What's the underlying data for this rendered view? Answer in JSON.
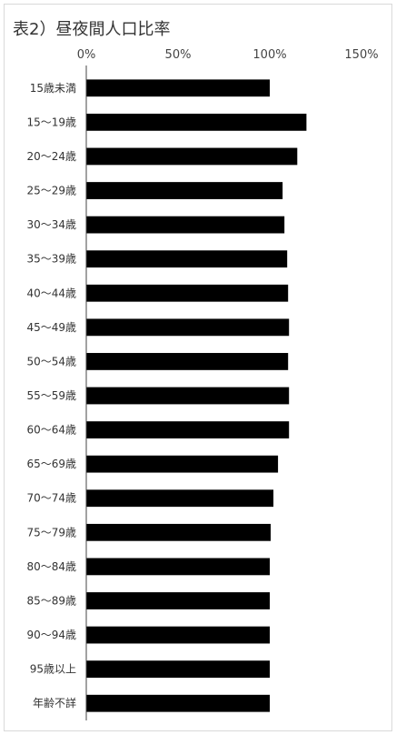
{
  "chart_data": {
    "type": "bar",
    "orientation": "horizontal",
    "title": "表2）昼夜間人口比率",
    "xlabel": "",
    "ylabel": "",
    "xlim": [
      0,
      150
    ],
    "x_ticks": [
      "0%",
      "50%",
      "100%",
      "150%"
    ],
    "x_tick_values": [
      0,
      50,
      100,
      150
    ],
    "grid": false,
    "legend": "none",
    "bar_color": "#000000",
    "categories": [
      "15歳未満",
      "15～19歳",
      "20～24歳",
      "25～29歳",
      "30～34歳",
      "35～39歳",
      "40～44歳",
      "45～49歳",
      "50～54歳",
      "55～59歳",
      "60～64歳",
      "65～69歳",
      "70～74歳",
      "75～79歳",
      "80～84歳",
      "85～89歳",
      "90～94歳",
      "95歳以上",
      "年齢不詳"
    ],
    "values": [
      100,
      120,
      115,
      107,
      108,
      109.5,
      110,
      110.5,
      110,
      110.5,
      110.5,
      104.5,
      102,
      100.5,
      100,
      100,
      100,
      100,
      100
    ]
  }
}
